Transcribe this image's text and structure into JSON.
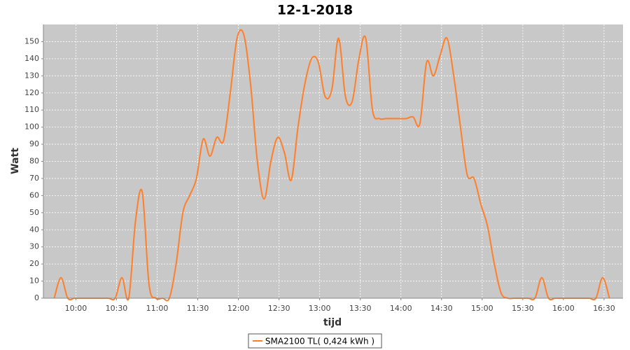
{
  "chart_data": {
    "type": "line",
    "title": "12-1-2018",
    "xlabel": "tijd",
    "ylabel": "Watt",
    "x": [
      "09:44",
      "09:49",
      "09:54",
      "09:59",
      "10:04",
      "10:09",
      "10:14",
      "10:19",
      "10:24",
      "10:29",
      "10:34",
      "10:39",
      "10:44",
      "10:49",
      "10:54",
      "10:59",
      "11:04",
      "11:09",
      "11:14",
      "11:19",
      "11:24",
      "11:29",
      "11:34",
      "11:39",
      "11:44",
      "11:49",
      "11:54",
      "11:59",
      "12:04",
      "12:09",
      "12:14",
      "12:19",
      "12:24",
      "12:29",
      "12:34",
      "12:39",
      "12:44",
      "12:49",
      "12:54",
      "12:59",
      "13:04",
      "13:09",
      "13:14",
      "13:19",
      "13:24",
      "13:29",
      "13:34",
      "13:39",
      "13:44",
      "13:49",
      "13:54",
      "13:59",
      "14:04",
      "14:09",
      "14:14",
      "14:19",
      "14:24",
      "14:29",
      "14:34",
      "14:39",
      "14:44",
      "14:49",
      "14:54",
      "14:59",
      "15:04",
      "15:09",
      "15:14",
      "15:19",
      "15:24",
      "15:29",
      "15:34",
      "15:39",
      "15:44",
      "15:49",
      "15:54",
      "15:59",
      "16:04",
      "16:09",
      "16:14",
      "16:19",
      "16:24",
      "16:29",
      "16:34"
    ],
    "series": [
      {
        "name": "SMA2100 TL( 0,424 kWh )",
        "color": "#ff7f2a",
        "values": [
          0,
          12,
          0,
          0,
          0,
          0,
          0,
          0,
          0,
          0,
          12,
          0,
          45,
          62,
          8,
          0,
          0,
          0,
          20,
          50,
          60,
          70,
          93,
          83,
          94,
          92,
          120,
          152,
          154,
          125,
          80,
          58,
          80,
          94,
          85,
          69,
          100,
          125,
          140,
          138,
          118,
          122,
          152,
          118,
          115,
          140,
          152,
          110,
          105,
          105,
          105,
          105,
          105,
          106,
          102,
          138,
          130,
          142,
          152,
          130,
          100,
          72,
          70,
          55,
          42,
          20,
          3,
          0,
          0,
          0,
          0,
          0,
          12,
          0,
          0,
          0,
          0,
          0,
          0,
          0,
          0,
          12,
          0
        ]
      }
    ],
    "xlim": [
      "09:36",
      "16:44"
    ],
    "xticks": [
      "10:00",
      "10:30",
      "11:00",
      "11:30",
      "12:00",
      "12:30",
      "13:00",
      "13:30",
      "14:00",
      "14:30",
      "15:00",
      "15:30",
      "16:00",
      "16:30"
    ],
    "ylim": [
      0,
      160
    ],
    "yticks": [
      0,
      10,
      20,
      30,
      40,
      50,
      60,
      70,
      80,
      90,
      100,
      110,
      120,
      130,
      140,
      150
    ],
    "grid": true,
    "legend": "bottom"
  }
}
